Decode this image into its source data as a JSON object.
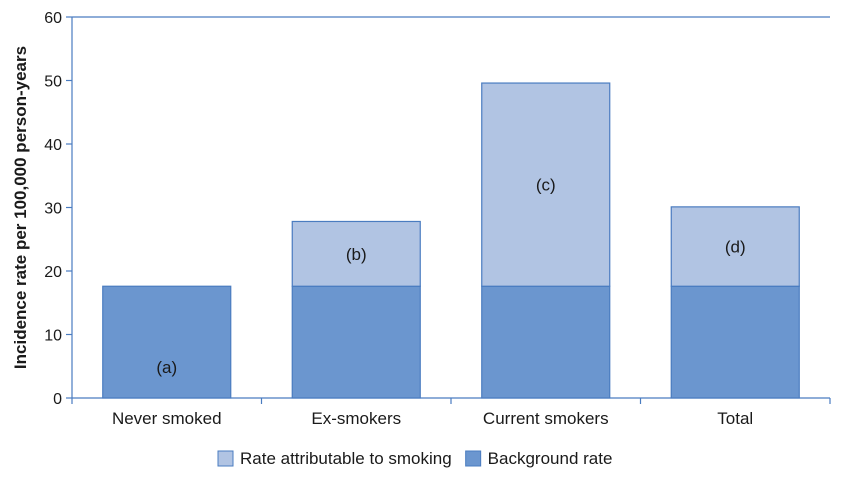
{
  "chart_data": {
    "type": "bar",
    "stacked": true,
    "categories": [
      "Never smoked",
      "Ex-smokers",
      "Current smokers",
      "Total"
    ],
    "series": [
      {
        "name": "Background rate",
        "values": [
          17.6,
          17.6,
          17.6,
          17.6
        ],
        "color": "#6b96cf"
      },
      {
        "name": "Rate attributable to smoking",
        "values": [
          0,
          10.2,
          32.0,
          12.5
        ],
        "color": "#b1c4e3"
      }
    ],
    "annotations": [
      "(a)",
      "(b)",
      "(c)",
      "(d)"
    ],
    "ylabel": "Incidence rate per 100,000 person-years",
    "xlabel": "",
    "ylim": [
      0,
      60
    ],
    "yticks": [
      0,
      10,
      20,
      30,
      40,
      50,
      60
    ],
    "grid": false,
    "legend": {
      "position": "bottom-center",
      "order": [
        "Rate attributable to smoking",
        "Background rate"
      ]
    },
    "axis_color": "#4a7cc0",
    "bar_edge_color": "#4a7cc0"
  }
}
